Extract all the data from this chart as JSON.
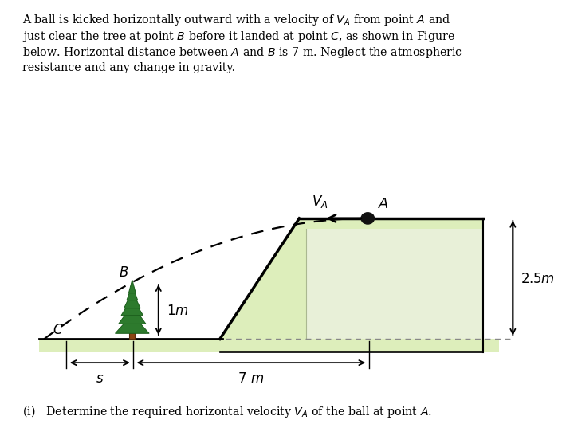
{
  "bg_color": "#ffffff",
  "ground_fill": "#ddeebb",
  "ramp_fill": "#ddeebb",
  "ramp_inner_fill": "#e8f0d8",
  "ramp_edge": "#000000",
  "tree_trunk": "#8B4513",
  "tree_dark": "#1a5c1a",
  "tree_mid": "#2d7a2d",
  "tree_light": "#4aaa3a",
  "ball_color": "#111111",
  "A_x": 6.8,
  "A_y": 3.6,
  "tree_x": 2.5,
  "tree_base_y": 1.05,
  "tree_height": 1.2,
  "C_x": 1.3,
  "C_y": 1.05,
  "ground_y": 1.05,
  "platform_top_y": 3.6,
  "ramp_bottom_x": 4.1,
  "ramp_top_left_x": 5.55,
  "platform_right_x": 8.9,
  "platform_inner_top_y": 3.35,
  "platform_inner_right_x": 8.9,
  "xlim": [
    0.5,
    9.8
  ],
  "ylim": [
    0.0,
    5.2
  ]
}
